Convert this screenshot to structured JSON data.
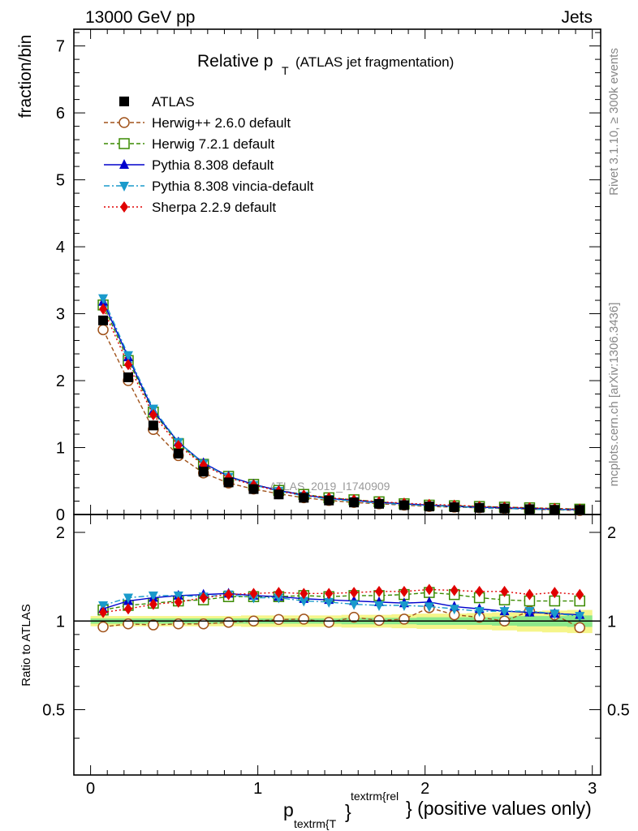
{
  "header": {
    "left": "13000 GeV pp",
    "right": "Jets"
  },
  "side": {
    "rivet": "Rivet 3.1.10, ≥ 300k events",
    "mcplots": "mcplots.cern.ch [arXiv:1306.3436]"
  },
  "chart_data": {
    "type": "scatter",
    "title": "Relative p",
    "title_sub": "T",
    "title_suffix": "(ATLAS jet fragmentation)",
    "watermark": "ATLAS_2019_I1740909",
    "ylabel_main": "fraction/bin",
    "ylabel_ratio": "Ratio to ATLAS",
    "xlabel": {
      "p": "p",
      "sub": "textrm{T",
      "brace": "}",
      "sup": "textrm{rel",
      "tail": "} (positive values only)"
    },
    "xlim": [
      -0.1,
      3.05
    ],
    "ylim_main": [
      0,
      7.25
    ],
    "ylim_ratio": [
      0.3,
      2.3
    ],
    "xticks": [
      "0",
      "1",
      "2",
      "3"
    ],
    "yticks_main": [
      "0",
      "1",
      "2",
      "3",
      "4",
      "5",
      "6",
      "7"
    ],
    "yticks_ratio": [
      "0.5",
      "1",
      "2"
    ],
    "x": [
      0.075,
      0.225,
      0.375,
      0.525,
      0.675,
      0.825,
      0.975,
      1.125,
      1.275,
      1.425,
      1.575,
      1.725,
      1.875,
      2.025,
      2.175,
      2.325,
      2.475,
      2.625,
      2.775,
      2.925
    ],
    "series": [
      {
        "name": "ATLAS",
        "color": "#000000",
        "marker": "square-filled",
        "values": [
          2.9,
          2.05,
          1.33,
          0.91,
          0.64,
          0.48,
          0.38,
          0.3,
          0.25,
          0.21,
          0.18,
          0.16,
          0.14,
          0.12,
          0.11,
          0.1,
          0.09,
          0.08,
          0.07,
          0.07
        ],
        "ratio": [
          1,
          1,
          1,
          1,
          1,
          1,
          1,
          1,
          1,
          1,
          1,
          1,
          1,
          1,
          1,
          1,
          1,
          1,
          1,
          1
        ]
      },
      {
        "name": "Herwig++ 2.6.0 default",
        "color": "#a0521a",
        "marker": "circle-open",
        "dash": "5,3",
        "values": [
          2.76,
          2.0,
          1.27,
          0.88,
          0.62,
          0.47,
          0.38,
          0.31,
          0.25,
          0.21,
          0.18,
          0.16,
          0.14,
          0.12,
          0.11,
          0.1,
          0.09,
          0.08,
          0.07,
          0.06
        ],
        "ratio": [
          0.955,
          0.978,
          0.97,
          0.978,
          0.978,
          0.99,
          1.0,
          1.012,
          1.015,
          0.99,
          1.03,
          1.005,
          1.015,
          1.11,
          1.05,
          1.03,
          1.0,
          1.08,
          1.05,
          0.95
        ]
      },
      {
        "name": "Herwig 7.2.1 default",
        "color": "#3a8a00",
        "marker": "square-open",
        "dash": "5,3",
        "values": [
          3.13,
          2.3,
          1.53,
          1.06,
          0.75,
          0.57,
          0.45,
          0.36,
          0.3,
          0.25,
          0.22,
          0.19,
          0.16,
          0.14,
          0.13,
          0.12,
          0.11,
          0.1,
          0.09,
          0.08
        ],
        "ratio": [
          1.09,
          1.13,
          1.15,
          1.17,
          1.18,
          1.21,
          1.21,
          1.21,
          1.22,
          1.21,
          1.22,
          1.22,
          1.23,
          1.25,
          1.23,
          1.2,
          1.18,
          1.17,
          1.17,
          1.17
        ]
      },
      {
        "name": "Pythia 8.308 default",
        "color": "#0000cc",
        "marker": "triangle-up",
        "dash": "",
        "values": [
          3.18,
          2.35,
          1.55,
          1.08,
          0.77,
          0.57,
          0.45,
          0.36,
          0.29,
          0.24,
          0.21,
          0.18,
          0.16,
          0.14,
          0.12,
          0.11,
          0.1,
          0.09,
          0.08,
          0.07
        ],
        "ratio": [
          1.1,
          1.17,
          1.2,
          1.22,
          1.23,
          1.24,
          1.22,
          1.21,
          1.19,
          1.18,
          1.17,
          1.16,
          1.15,
          1.16,
          1.12,
          1.1,
          1.08,
          1.07,
          1.06,
          1.05
        ]
      },
      {
        "name": "Pythia 8.308 vincia-default",
        "color": "#1a9acb",
        "marker": "triangle-down",
        "dash": "7,3,2,3",
        "values": [
          3.23,
          2.38,
          1.58,
          1.08,
          0.76,
          0.56,
          0.44,
          0.35,
          0.28,
          0.23,
          0.2,
          0.17,
          0.15,
          0.13,
          0.12,
          0.1,
          0.09,
          0.08,
          0.07,
          0.07
        ],
        "ratio": [
          1.13,
          1.2,
          1.22,
          1.22,
          1.21,
          1.23,
          1.2,
          1.2,
          1.17,
          1.16,
          1.14,
          1.13,
          1.13,
          1.12,
          1.1,
          1.08,
          1.08,
          1.08,
          1.06,
          1.04
        ]
      },
      {
        "name": "Sherpa 2.2.9 default",
        "color": "#e00000",
        "marker": "diamond",
        "dash": "2,3",
        "values": [
          3.07,
          2.24,
          1.49,
          1.03,
          0.74,
          0.55,
          0.44,
          0.35,
          0.29,
          0.25,
          0.22,
          0.19,
          0.17,
          0.15,
          0.14,
          0.12,
          0.11,
          0.1,
          0.09,
          0.08
        ],
        "ratio": [
          1.07,
          1.1,
          1.14,
          1.16,
          1.2,
          1.23,
          1.24,
          1.25,
          1.24,
          1.24,
          1.25,
          1.26,
          1.26,
          1.28,
          1.27,
          1.26,
          1.26,
          1.23,
          1.25,
          1.23
        ]
      }
    ],
    "uncertainty_bands": {
      "inner_color": "#8be88b",
      "outer_color": "#f5f58a",
      "inner": [
        0.02,
        0.02,
        0.02,
        0.02,
        0.02,
        0.02,
        0.02,
        0.02,
        0.02,
        0.02,
        0.025,
        0.025,
        0.025,
        0.03,
        0.03,
        0.03,
        0.035,
        0.04,
        0.04,
        0.045
      ],
      "outer": [
        0.04,
        0.04,
        0.04,
        0.04,
        0.04,
        0.04,
        0.045,
        0.045,
        0.045,
        0.045,
        0.05,
        0.05,
        0.055,
        0.06,
        0.06,
        0.065,
        0.07,
        0.08,
        0.085,
        0.09
      ]
    }
  }
}
